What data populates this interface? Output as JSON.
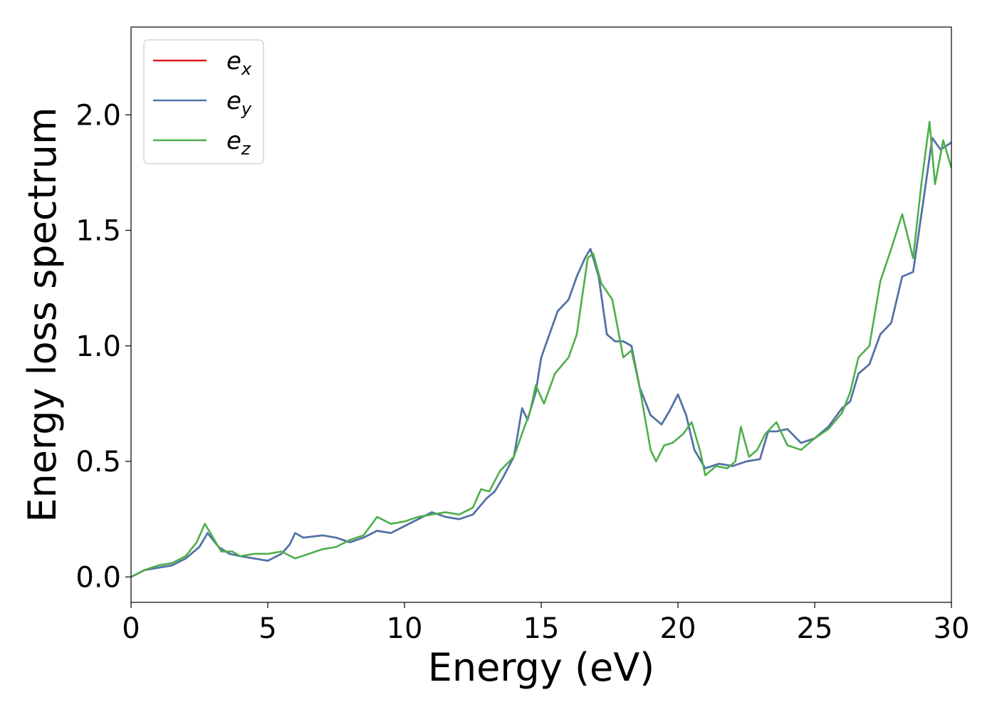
{
  "chart_data": {
    "type": "line",
    "xlabel": "Energy (eV)",
    "ylabel": "Energy loss spectrum",
    "xlim": [
      0,
      30
    ],
    "ylim": [
      -0.11,
      2.38
    ],
    "xticks": [
      0,
      5,
      10,
      15,
      20,
      25,
      30
    ],
    "xtick_labels": [
      "0",
      "5",
      "10",
      "15",
      "20",
      "25",
      "30"
    ],
    "yticks": [
      0.0,
      0.5,
      1.0,
      1.5,
      2.0
    ],
    "ytick_labels": [
      "0.0",
      "0.5",
      "1.0",
      "1.5",
      "2.0"
    ],
    "grid": false,
    "legend_position": "top-left",
    "series": [
      {
        "name": "e",
        "subscript": "x",
        "color": "#e41a1c",
        "x": [
          0,
          0.5,
          1,
          1.5,
          2,
          2.5,
          2.8,
          3.2,
          3.6,
          4,
          4.5,
          5,
          5.5,
          5.8,
          6,
          6.3,
          7,
          7.5,
          8,
          8.5,
          9,
          9.5,
          10,
          10.5,
          11,
          11.5,
          12,
          12.5,
          13,
          13.3,
          13.6,
          14,
          14.3,
          14.5,
          14.8,
          15,
          15.3,
          15.6,
          16,
          16.3,
          16.6,
          16.8,
          17.1,
          17.4,
          17.7,
          18,
          18.3,
          18.6,
          19,
          19.4,
          19.7,
          20,
          20.3,
          20.6,
          21,
          21.5,
          22,
          22.5,
          23,
          23.3,
          23.6,
          24,
          24.5,
          25,
          25.5,
          26,
          26.3,
          26.6,
          27,
          27.4,
          27.8,
          28.2,
          28.6,
          29,
          29.3,
          29.6,
          30
        ],
        "y": [
          0,
          0.03,
          0.04,
          0.05,
          0.08,
          0.13,
          0.19,
          0.13,
          0.1,
          0.09,
          0.08,
          0.07,
          0.1,
          0.14,
          0.19,
          0.17,
          0.18,
          0.17,
          0.15,
          0.17,
          0.2,
          0.19,
          0.22,
          0.25,
          0.28,
          0.26,
          0.25,
          0.27,
          0.34,
          0.37,
          0.43,
          0.52,
          0.73,
          0.68,
          0.8,
          0.95,
          1.05,
          1.15,
          1.2,
          1.3,
          1.38,
          1.42,
          1.3,
          1.05,
          1.02,
          1.02,
          1.0,
          0.82,
          0.7,
          0.66,
          0.72,
          0.79,
          0.7,
          0.55,
          0.47,
          0.49,
          0.48,
          0.5,
          0.51,
          0.63,
          0.63,
          0.64,
          0.58,
          0.6,
          0.65,
          0.73,
          0.76,
          0.88,
          0.92,
          1.05,
          1.1,
          1.3,
          1.32,
          1.65,
          1.9,
          1.85,
          1.88
        ]
      },
      {
        "name": "e",
        "subscript": "y",
        "color": "#4a76ac",
        "x": [
          0,
          0.5,
          1,
          1.5,
          2,
          2.5,
          2.8,
          3.2,
          3.6,
          4,
          4.5,
          5,
          5.5,
          5.8,
          6,
          6.3,
          7,
          7.5,
          8,
          8.5,
          9,
          9.5,
          10,
          10.5,
          11,
          11.5,
          12,
          12.5,
          13,
          13.3,
          13.6,
          14,
          14.3,
          14.5,
          14.8,
          15,
          15.3,
          15.6,
          16,
          16.3,
          16.6,
          16.8,
          17.1,
          17.4,
          17.7,
          18,
          18.3,
          18.6,
          19,
          19.4,
          19.7,
          20,
          20.3,
          20.6,
          21,
          21.5,
          22,
          22.5,
          23,
          23.3,
          23.6,
          24,
          24.5,
          25,
          25.5,
          26,
          26.3,
          26.6,
          27,
          27.4,
          27.8,
          28.2,
          28.6,
          29,
          29.3,
          29.6,
          30
        ],
        "y": [
          0,
          0.03,
          0.04,
          0.05,
          0.08,
          0.13,
          0.19,
          0.13,
          0.1,
          0.09,
          0.08,
          0.07,
          0.1,
          0.14,
          0.19,
          0.17,
          0.18,
          0.17,
          0.15,
          0.17,
          0.2,
          0.19,
          0.22,
          0.25,
          0.28,
          0.26,
          0.25,
          0.27,
          0.34,
          0.37,
          0.43,
          0.52,
          0.73,
          0.68,
          0.8,
          0.95,
          1.05,
          1.15,
          1.2,
          1.3,
          1.38,
          1.42,
          1.3,
          1.05,
          1.02,
          1.02,
          1.0,
          0.82,
          0.7,
          0.66,
          0.72,
          0.79,
          0.7,
          0.55,
          0.47,
          0.49,
          0.48,
          0.5,
          0.51,
          0.63,
          0.63,
          0.64,
          0.58,
          0.6,
          0.65,
          0.73,
          0.76,
          0.88,
          0.92,
          1.05,
          1.1,
          1.3,
          1.32,
          1.65,
          1.9,
          1.85,
          1.88
        ]
      },
      {
        "name": "e",
        "subscript": "z",
        "color": "#4daf4a",
        "x": [
          0,
          0.5,
          1,
          1.5,
          2,
          2.4,
          2.7,
          3.0,
          3.3,
          3.7,
          4,
          4.5,
          5,
          5.5,
          6,
          6.5,
          7,
          7.5,
          8,
          8.5,
          9,
          9.5,
          10,
          10.5,
          11,
          11.5,
          12,
          12.5,
          12.8,
          13.1,
          13.5,
          14,
          14.3,
          14.6,
          14.8,
          15.1,
          15.5,
          16,
          16.3,
          16.7,
          16.9,
          17.2,
          17.6,
          18,
          18.3,
          18.6,
          19,
          19.2,
          19.5,
          19.8,
          20.2,
          20.5,
          20.8,
          21,
          21.4,
          21.8,
          22.1,
          22.3,
          22.6,
          22.9,
          23.2,
          23.6,
          24,
          24.5,
          25,
          25.5,
          26,
          26.3,
          26.6,
          27,
          27.4,
          27.8,
          28.2,
          28.6,
          28.9,
          29.2,
          29.4,
          29.7,
          30
        ],
        "y": [
          0,
          0.03,
          0.05,
          0.06,
          0.09,
          0.15,
          0.23,
          0.17,
          0.11,
          0.11,
          0.09,
          0.1,
          0.1,
          0.11,
          0.08,
          0.1,
          0.12,
          0.13,
          0.16,
          0.18,
          0.26,
          0.23,
          0.24,
          0.26,
          0.27,
          0.28,
          0.27,
          0.3,
          0.38,
          0.37,
          0.46,
          0.52,
          0.62,
          0.72,
          0.83,
          0.75,
          0.88,
          0.95,
          1.05,
          1.38,
          1.4,
          1.27,
          1.2,
          0.95,
          0.98,
          0.82,
          0.55,
          0.5,
          0.57,
          0.58,
          0.62,
          0.67,
          0.55,
          0.44,
          0.48,
          0.47,
          0.5,
          0.65,
          0.52,
          0.55,
          0.62,
          0.67,
          0.57,
          0.55,
          0.6,
          0.64,
          0.71,
          0.8,
          0.95,
          1.0,
          1.28,
          1.42,
          1.57,
          1.38,
          1.7,
          1.97,
          1.7,
          1.89,
          1.77
        ]
      }
    ]
  }
}
